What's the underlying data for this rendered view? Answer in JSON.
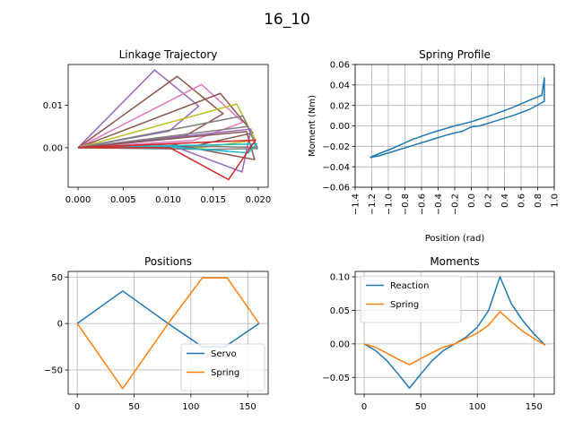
{
  "figure": {
    "suptitle": "16_10"
  },
  "chart_data": [
    {
      "id": "linkage",
      "type": "line",
      "title": "Linkage Trajectory",
      "xlabel": "",
      "ylabel": "",
      "xlim": [
        -0.0011,
        0.0211
      ],
      "ylim": [
        -0.0093,
        0.0196
      ],
      "xticks": [
        0.0,
        0.005,
        0.01,
        0.015,
        0.02
      ],
      "xtick_labels": [
        "0.000",
        "0.005",
        "0.010",
        "0.015",
        "0.020"
      ],
      "yticks": [
        0.0,
        0.01
      ],
      "ytick_labels": [
        "0.00",
        "0.01"
      ],
      "grid": false,
      "series": [
        {
          "color": "#9467bd",
          "x": [
            0,
            0.0085,
            0.0134,
            0.0101,
            0
          ],
          "y": [
            0,
            0.0183,
            0.0098,
            0.0039,
            0
          ]
        },
        {
          "color": "#8c564b",
          "x": [
            0,
            0.011,
            0.0161,
            0.0119,
            0
          ],
          "y": [
            0,
            0.0168,
            0.008,
            0.0028,
            0
          ]
        },
        {
          "color": "#e377c2",
          "x": [
            0,
            0.0137,
            0.0183,
            0.0128,
            0
          ],
          "y": [
            0,
            0.0149,
            0.006,
            0.0017,
            0
          ]
        },
        {
          "color": "#8c564b",
          "x": [
            0,
            0.0158,
            0.0194,
            0.0133,
            0
          ],
          "y": [
            0,
            0.0128,
            0.0035,
            0.0006,
            0
          ]
        },
        {
          "color": "#bcbd22",
          "x": [
            0,
            0.0176,
            0.0197,
            0.0137,
            0
          ],
          "y": [
            0,
            0.0103,
            0.0018,
            0.0,
            0
          ]
        },
        {
          "color": "#7f7f7f",
          "x": [
            0,
            0.0183,
            0.0199,
            0.0145,
            0
          ],
          "y": [
            0,
            0.0075,
            -0.0002,
            -0.0004,
            0
          ]
        },
        {
          "color": "#7f7f7f",
          "x": [
            0,
            0.0188,
            0.0199,
            0.0141,
            0
          ],
          "y": [
            0,
            0.005,
            0.0001,
            0.0003,
            0
          ]
        },
        {
          "color": "#9467bd",
          "x": [
            0,
            0.0192,
            0.0182,
            0.0108,
            0
          ],
          "y": [
            0,
            0.0044,
            -0.0057,
            0.0002,
            0
          ]
        },
        {
          "color": "#8c564b",
          "x": [
            0,
            0.0187,
            0.0196,
            0.0103,
            0
          ],
          "y": [
            0,
            0.0038,
            -0.0028,
            0.0009,
            0
          ]
        },
        {
          "color": "#17becf",
          "x": [
            0,
            0.0198,
            0.0189,
            0.0102,
            0
          ],
          "y": [
            0,
            0.0009,
            -0.0012,
            0.0002,
            0
          ]
        },
        {
          "color": "#d62728",
          "x": [
            0,
            0.0197,
            0.0167,
            0.0102,
            0
          ],
          "y": [
            0,
            0.0018,
            -0.0075,
            0.0,
            0
          ]
        }
      ]
    },
    {
      "id": "spring_profile",
      "type": "line",
      "title": "Spring Profile",
      "xlabel": "Position (rad)",
      "ylabel": "Moment (Nm)",
      "xlim": [
        -1.4,
        1.0
      ],
      "ylim": [
        -0.06,
        0.06
      ],
      "xticks": [
        -1.4,
        -1.2,
        -1.0,
        -0.8,
        -0.6,
        -0.4,
        -0.2,
        0.0,
        0.2,
        0.4,
        0.6,
        0.8,
        1.0
      ],
      "xtick_labels": [
        "−1.4",
        "−1.2",
        "−1.0",
        "−0.8",
        "−0.6",
        "−0.4",
        "−0.2",
        "0.0",
        "0.2",
        "0.4",
        "0.6",
        "0.8",
        "1.0"
      ],
      "yticks": [
        -0.06,
        -0.04,
        -0.02,
        0.0,
        0.02,
        0.04,
        0.06
      ],
      "ytick_labels": [
        "−0.06",
        "−0.04",
        "−0.02",
        "0.00",
        "0.02",
        "0.04",
        "0.06"
      ],
      "grid": true,
      "series": [
        {
          "color": "#1f77b4",
          "x": [
            -1.22,
            -1.1,
            -0.9,
            -0.7,
            -0.5,
            -0.3,
            -0.1,
            0.0,
            0.1,
            0.3,
            0.5,
            0.7,
            0.88,
            0.88,
            0.85,
            0.7,
            0.5,
            0.3,
            0.15,
            0.0,
            -0.2,
            -0.45,
            -0.7,
            -0.95,
            -1.2,
            -1.22
          ],
          "y": [
            -0.031,
            -0.029,
            -0.024,
            -0.019,
            -0.014,
            -0.009,
            -0.005,
            -0.001,
            0.0,
            0.005,
            0.01,
            0.016,
            0.024,
            0.047,
            0.03,
            0.025,
            0.018,
            0.012,
            0.008,
            0.004,
            0.0,
            -0.006,
            -0.013,
            -0.022,
            -0.03,
            -0.031
          ]
        }
      ]
    },
    {
      "id": "positions",
      "type": "line",
      "title": "Positions",
      "xlabel": "",
      "ylabel": "",
      "xlim": [
        -8,
        168
      ],
      "ylim": [
        -76,
        56
      ],
      "xticks": [
        0,
        50,
        100,
        150
      ],
      "xtick_labels": [
        "0",
        "50",
        "100",
        "150"
      ],
      "yticks": [
        -50,
        0,
        50
      ],
      "ytick_labels": [
        "−50",
        "0",
        "50"
      ],
      "grid": true,
      "legend": {
        "position": "bottom-right"
      },
      "series": [
        {
          "name": "Servo",
          "color": "#1f77b4",
          "x": [
            0,
            40,
            80,
            110,
            120,
            130,
            160
          ],
          "y": [
            0,
            35,
            0,
            -25,
            -25,
            -25,
            0
          ]
        },
        {
          "name": "Spring",
          "color": "#ff7f0e",
          "x": [
            0,
            40,
            80,
            110,
            120,
            132,
            160
          ],
          "y": [
            0,
            -70,
            0,
            49,
            49,
            49,
            0
          ]
        }
      ]
    },
    {
      "id": "moments",
      "type": "line",
      "title": "Moments",
      "xlabel": "",
      "ylabel": "",
      "xlim": [
        -8,
        168
      ],
      "ylim": [
        -0.075,
        0.108
      ],
      "xticks": [
        0,
        50,
        100,
        150
      ],
      "xtick_labels": [
        "0",
        "50",
        "100",
        "150"
      ],
      "yticks": [
        -0.05,
        0.0,
        0.05,
        0.1
      ],
      "ytick_labels": [
        "−0.05",
        "0.00",
        "0.05",
        "0.10"
      ],
      "grid": true,
      "legend": {
        "position": "top-left"
      },
      "series": [
        {
          "name": "Reaction",
          "color": "#1f77b4",
          "x": [
            0,
            10,
            20,
            30,
            40,
            50,
            60,
            70,
            80,
            90,
            100,
            110,
            120,
            130,
            140,
            150,
            160
          ],
          "y": [
            0,
            -0.01,
            -0.025,
            -0.045,
            -0.066,
            -0.045,
            -0.025,
            -0.01,
            0.0,
            0.01,
            0.025,
            0.05,
            0.1,
            0.06,
            0.035,
            0.015,
            -0.002
          ]
        },
        {
          "name": "Spring",
          "color": "#ff7f0e",
          "x": [
            0,
            10,
            20,
            30,
            40,
            50,
            60,
            70,
            80,
            90,
            100,
            110,
            120,
            130,
            140,
            150,
            160
          ],
          "y": [
            0,
            -0.005,
            -0.014,
            -0.023,
            -0.031,
            -0.022,
            -0.013,
            -0.005,
            0.0,
            0.008,
            0.016,
            0.028,
            0.048,
            0.033,
            0.019,
            0.008,
            -0.002
          ]
        }
      ]
    }
  ]
}
